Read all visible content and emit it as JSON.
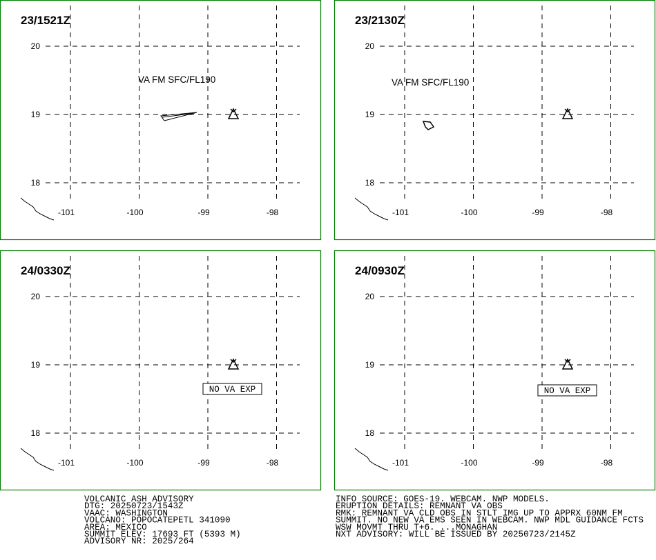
{
  "panels": [
    {
      "time": "23/1521Z",
      "lat_ticks": [
        20,
        19,
        18
      ],
      "lon_ticks": [
        -101,
        -100,
        -99,
        -98
      ],
      "ash_label": "VA FM SFC/FL190"
    },
    {
      "time": "23/2130Z",
      "lat_ticks": [
        20,
        19,
        18
      ],
      "lon_ticks": [
        -101,
        -100,
        -99,
        -98
      ],
      "ash_label": "VA FM SFC/FL190"
    },
    {
      "time": "24/0330Z",
      "lat_ticks": [
        20,
        19,
        18
      ],
      "lon_ticks": [
        -101,
        -100,
        -99,
        -98
      ],
      "no_ash_label": "NO VA EXP"
    },
    {
      "time": "24/0930Z",
      "lat_ticks": [
        20,
        19,
        18
      ],
      "lon_ticks": [
        -101,
        -100,
        -99,
        -98
      ],
      "no_ash_label": "NO VA EXP"
    }
  ],
  "advisory": {
    "left": [
      "VOLCANIC ASH ADVISORY",
      "DTG: 20250723/1543Z",
      "VAAC: WASHINGTON",
      "VOLCANO: POPOCATEPETL 341090",
      "AREA: MEXICO",
      "SUMMIT ELEV: 17693 FT (5393 M)",
      "ADVISORY NR: 2025/264"
    ],
    "right": [
      "INFO SOURCE: GOES-19. WEBCAM. NWP MODELS.",
      "ERUPTION DETAILS: REMNANT VA OBS",
      "RMK: REMNANT VA CLD OBS IN STLT IMG UP TO APPRX 60NM FM",
      "SUMMIT. NO NEW VA EMS SEEN IN WEBCAM. NWP MDL GUIDANCE FCTS",
      "WSW MOVMT THRU T+6. ...MONAGHAN",
      "NXT ADVISORY: WILL BE ISSUED BY 20250723/2145Z"
    ]
  }
}
